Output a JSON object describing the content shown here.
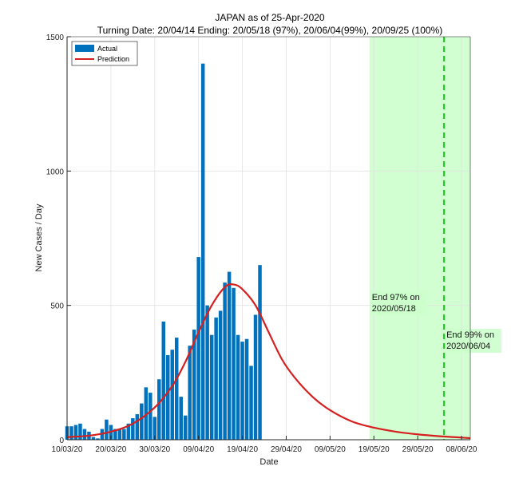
{
  "chart_data": {
    "type": "bar",
    "title": "JAPAN as of 25-Apr-2020",
    "subtitle": "Turning Date: 20/04/14  Ending: 20/05/18 (97%), 20/06/04(99%), 20/09/25 (100%)",
    "xlabel": "Date",
    "ylabel": "New Cases / Day",
    "ylim": [
      0,
      1500
    ],
    "yticks": [
      0,
      500,
      1000,
      1500
    ],
    "xlim": [
      "2020-03-10",
      "2020-06-10"
    ],
    "xticks": [
      {
        "date": "2020-03-10",
        "label": "10/03/20"
      },
      {
        "date": "2020-03-20",
        "label": "20/03/20"
      },
      {
        "date": "2020-03-30",
        "label": "30/03/20"
      },
      {
        "date": "2020-04-09",
        "label": "09/04/20"
      },
      {
        "date": "2020-04-19",
        "label": "19/04/20"
      },
      {
        "date": "2020-04-29",
        "label": "29/04/20"
      },
      {
        "date": "2020-05-09",
        "label": "09/05/20"
      },
      {
        "date": "2020-05-19",
        "label": "19/05/20"
      },
      {
        "date": "2020-05-29",
        "label": "29/05/20"
      },
      {
        "date": "2020-06-08",
        "label": "08/06/20"
      }
    ],
    "grid": true,
    "legend": "top-left",
    "series": [
      {
        "name": "Actual",
        "type": "bar",
        "color": "#0072BD",
        "start_date": "2020-03-10",
        "values": [
          50,
          50,
          55,
          60,
          40,
          30,
          10,
          5,
          40,
          75,
          55,
          40,
          40,
          40,
          60,
          80,
          95,
          135,
          195,
          175,
          85,
          225,
          440,
          315,
          335,
          380,
          160,
          90,
          350,
          410,
          680,
          1400,
          500,
          390,
          455,
          480,
          585,
          625,
          565,
          390,
          365,
          375,
          275,
          465,
          650
        ]
      },
      {
        "name": "Prediction",
        "type": "line",
        "color": "#D62020",
        "points": [
          [
            "2020-03-10",
            10
          ],
          [
            "2020-03-15",
            15
          ],
          [
            "2020-03-20",
            30
          ],
          [
            "2020-03-25",
            60
          ],
          [
            "2020-03-30",
            120
          ],
          [
            "2020-04-03",
            200
          ],
          [
            "2020-04-06",
            290
          ],
          [
            "2020-04-09",
            400
          ],
          [
            "2020-04-12",
            500
          ],
          [
            "2020-04-15",
            568
          ],
          [
            "2020-04-17",
            578
          ],
          [
            "2020-04-19",
            560
          ],
          [
            "2020-04-22",
            500
          ],
          [
            "2020-04-25",
            400
          ],
          [
            "2020-04-28",
            300
          ],
          [
            "2020-05-01",
            230
          ],
          [
            "2020-05-05",
            160
          ],
          [
            "2020-05-09",
            110
          ],
          [
            "2020-05-14",
            68
          ],
          [
            "2020-05-19",
            45
          ],
          [
            "2020-05-24",
            30
          ],
          [
            "2020-05-29",
            20
          ],
          [
            "2020-06-03",
            13
          ],
          [
            "2020-06-08",
            8
          ],
          [
            "2020-06-10",
            6
          ]
        ]
      }
    ],
    "shaded_region": {
      "from": "2020-05-18",
      "to": "2020-06-10",
      "color": "#CCFFCC"
    },
    "vline": {
      "date": "2020-06-04",
      "color": "#22CC22",
      "style": "dashed"
    },
    "annotations": [
      {
        "text": [
          "End 97% on",
          "2020/05/18"
        ],
        "date": "2020-05-18",
        "y": 520
      },
      {
        "text": [
          "End 99% on",
          "2020/06/04"
        ],
        "date": "2020-06-04",
        "y": 380
      }
    ]
  }
}
